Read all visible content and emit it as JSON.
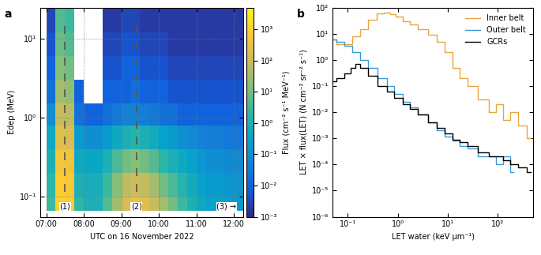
{
  "chart_data": [
    {
      "type": "heatmap",
      "panel_label": "a",
      "xlabel": "UTC on 16 November 2022",
      "ylabel": "Edep (MeV)",
      "log": "y",
      "grid": true,
      "x_edges": [
        7.0,
        7.25,
        7.5,
        7.75,
        8.0,
        8.25,
        8.5,
        8.75,
        9.0,
        9.25,
        9.5,
        9.75,
        10.0,
        10.25,
        10.5,
        10.75,
        11.0,
        11.25,
        11.5,
        11.75,
        12.0,
        12.25
      ],
      "y_edges": [
        0.065,
        0.1,
        0.2,
        0.4,
        0.8,
        1.5,
        3,
        6,
        12,
        25
      ],
      "cells": [
        [
          3,
          1000,
          800,
          2,
          1,
          1,
          5,
          30,
          150,
          300,
          200,
          80,
          30,
          10,
          3,
          1,
          0.5,
          0.3,
          0.3,
          0.2,
          0.2
        ],
        [
          2,
          800,
          600,
          1,
          0.8,
          0.8,
          3,
          15,
          60,
          100,
          70,
          30,
          10,
          4,
          1.5,
          0.6,
          0.3,
          0.2,
          0.2,
          0.15,
          0.15
        ],
        [
          1,
          500,
          400,
          0.5,
          0.4,
          0.4,
          1,
          4,
          10,
          15,
          10,
          5,
          2,
          1,
          0.5,
          0.3,
          0.15,
          0.1,
          0.1,
          0.08,
          0.08
        ],
        [
          0.5,
          200,
          150,
          0.2,
          0.1,
          0.1,
          0.2,
          0.5,
          1,
          1.5,
          1,
          0.6,
          0.3,
          0.2,
          0.1,
          0.08,
          0.05,
          0.04,
          0.04,
          0.03,
          0.03
        ],
        [
          0.1,
          80,
          60,
          0.02,
          0.01,
          0.01,
          0.02,
          0.03,
          0.05,
          0.05,
          0.04,
          0.03,
          0.02,
          0.02,
          0.01,
          0.01,
          0.01,
          0.01,
          0.01,
          0.01,
          0.01
        ],
        [
          0.02,
          30,
          20,
          0.01,
          null,
          null,
          0.01,
          0.01,
          0.01,
          0.02,
          0.01,
          0.01,
          0.01,
          0.005,
          0.005,
          0.005,
          0.005,
          0.005,
          0.005,
          0.005,
          0.005
        ],
        [
          0.01,
          15,
          10,
          null,
          null,
          null,
          0.005,
          0.005,
          0.01,
          0.01,
          0.005,
          0.005,
          0.005,
          0.003,
          0.003,
          0.003,
          0.003,
          0.003,
          0.003,
          0.003,
          0.003
        ],
        [
          0.005,
          8,
          5,
          null,
          null,
          null,
          0.003,
          0.003,
          0.005,
          0.005,
          0.003,
          0.003,
          0.003,
          0.002,
          0.002,
          0.002,
          0.002,
          0.002,
          0.002,
          0.002,
          0.002
        ],
        [
          0.003,
          5,
          3,
          null,
          null,
          null,
          0.002,
          0.002,
          0.003,
          0.003,
          0.002,
          0.002,
          0.002,
          0.002,
          0.002,
          0.002,
          0.002,
          0.002,
          0.002,
          0.002,
          0.002
        ]
      ],
      "xlim": [
        6.85,
        12.25
      ],
      "xticks": [
        {
          "value": 7,
          "label": "07:00"
        },
        {
          "value": 8,
          "label": "08:00"
        },
        {
          "value": 9,
          "label": "09:00"
        },
        {
          "value": 10,
          "label": "10:00"
        },
        {
          "value": 11,
          "label": "11:00"
        },
        {
          "value": 12,
          "label": "12:00"
        }
      ],
      "ylim": [
        0.055,
        25
      ],
      "yticks": [
        {
          "value": 0.1,
          "label": "10⁻¹"
        },
        {
          "value": 1,
          "label": "10⁰"
        },
        {
          "value": 10,
          "label": "10¹"
        }
      ],
      "colorbar": {
        "label": "Flux (cm⁻² s⁻¹ MeV⁻¹)",
        "log": true,
        "lim": [
          0.001,
          5000
        ],
        "ticks": [
          {
            "value": 0.001,
            "label": "10⁻³"
          },
          {
            "value": 0.01,
            "label": "10⁻²"
          },
          {
            "value": 0.1,
            "label": "10⁻¹"
          },
          {
            "value": 1,
            "label": "10⁰"
          },
          {
            "value": 10,
            "label": "10¹"
          },
          {
            "value": 100,
            "label": "10²"
          },
          {
            "value": 1000,
            "label": "10³"
          }
        ]
      },
      "annotations": [
        {
          "text": "(1)",
          "x": 7.5,
          "line_style": "dashed"
        },
        {
          "text": "(2)",
          "x": 9.4,
          "line_style": "dashed"
        },
        {
          "text": "(3) →",
          "x": 11.8
        }
      ]
    },
    {
      "type": "line",
      "panel_label": "b",
      "xlabel": "LET water (keV µm⁻¹)",
      "ylabel": "LET × flux(LET) (N cm⁻² sr⁻² s⁻¹)",
      "log": true,
      "legend": "upper right",
      "xlim": [
        0.05,
        500
      ],
      "xticks": [
        {
          "value": 0.1,
          "label": "10⁻¹"
        },
        {
          "value": 1,
          "label": "10⁰"
        },
        {
          "value": 10,
          "label": "10¹"
        },
        {
          "value": 100,
          "label": "10²"
        }
      ],
      "ylim": [
        1e-06,
        100
      ],
      "yticks": [
        {
          "value": 1e-06,
          "label": "10⁻⁶"
        },
        {
          "value": 1e-05,
          "label": "10⁻⁵"
        },
        {
          "value": 0.0001,
          "label": "10⁻⁴"
        },
        {
          "value": 0.001,
          "label": "10⁻³"
        },
        {
          "value": 0.01,
          "label": "10⁻²"
        },
        {
          "value": 0.1,
          "label": "10⁻¹"
        },
        {
          "value": 1,
          "label": "10⁰"
        },
        {
          "value": 10,
          "label": "10¹"
        },
        {
          "value": 100,
          "label": "10²"
        }
      ],
      "series": [
        {
          "name": "Inner belt",
          "color": "#eaa43a",
          "line_style": "steps",
          "x": [
            0.05,
            0.07,
            0.1,
            0.15,
            0.2,
            0.3,
            0.45,
            0.6,
            0.8,
            1.0,
            1.5,
            2,
            3,
            5,
            7,
            10,
            15,
            20,
            30,
            50,
            80,
            100,
            150,
            200,
            300,
            450
          ],
          "values": [
            6,
            4,
            4,
            8,
            15,
            35,
            60,
            65,
            55,
            45,
            30,
            22,
            15,
            9,
            5,
            2,
            0.5,
            0.2,
            0.1,
            0.03,
            0.01,
            0.02,
            0.005,
            0.01,
            0.003,
            0.001
          ]
        },
        {
          "name": "Outer belt",
          "color": "#3a9ad9",
          "line_style": "steps",
          "x": [
            0.05,
            0.07,
            0.1,
            0.15,
            0.2,
            0.3,
            0.5,
            0.7,
            1,
            1.5,
            2,
            3,
            5,
            7,
            10,
            15,
            20,
            30,
            50,
            80,
            100,
            150,
            200
          ],
          "values": [
            6,
            5,
            3.5,
            2,
            1,
            0.5,
            0.2,
            0.1,
            0.05,
            0.025,
            0.015,
            0.008,
            0.004,
            0.002,
            0.0012,
            0.0008,
            0.0005,
            0.0004,
            0.0002,
            0.0002,
            0.0001,
            0.0002,
            5e-05
          ]
        },
        {
          "name": "GCRs",
          "color": "#000000",
          "line_style": "steps",
          "x": [
            0.05,
            0.07,
            0.1,
            0.13,
            0.15,
            0.2,
            0.3,
            0.5,
            0.7,
            1,
            1.5,
            2,
            3,
            5,
            7,
            10,
            15,
            20,
            30,
            50,
            80,
            100,
            150,
            200,
            300,
            450
          ],
          "values": [
            0.15,
            0.2,
            0.3,
            0.5,
            0.7,
            0.5,
            0.25,
            0.1,
            0.06,
            0.035,
            0.02,
            0.013,
            0.008,
            0.004,
            0.0025,
            0.0015,
            0.0009,
            0.0007,
            0.0005,
            0.0003,
            0.0002,
            0.0002,
            0.00015,
            0.0001,
            8e-05,
            5e-05
          ]
        }
      ]
    }
  ]
}
